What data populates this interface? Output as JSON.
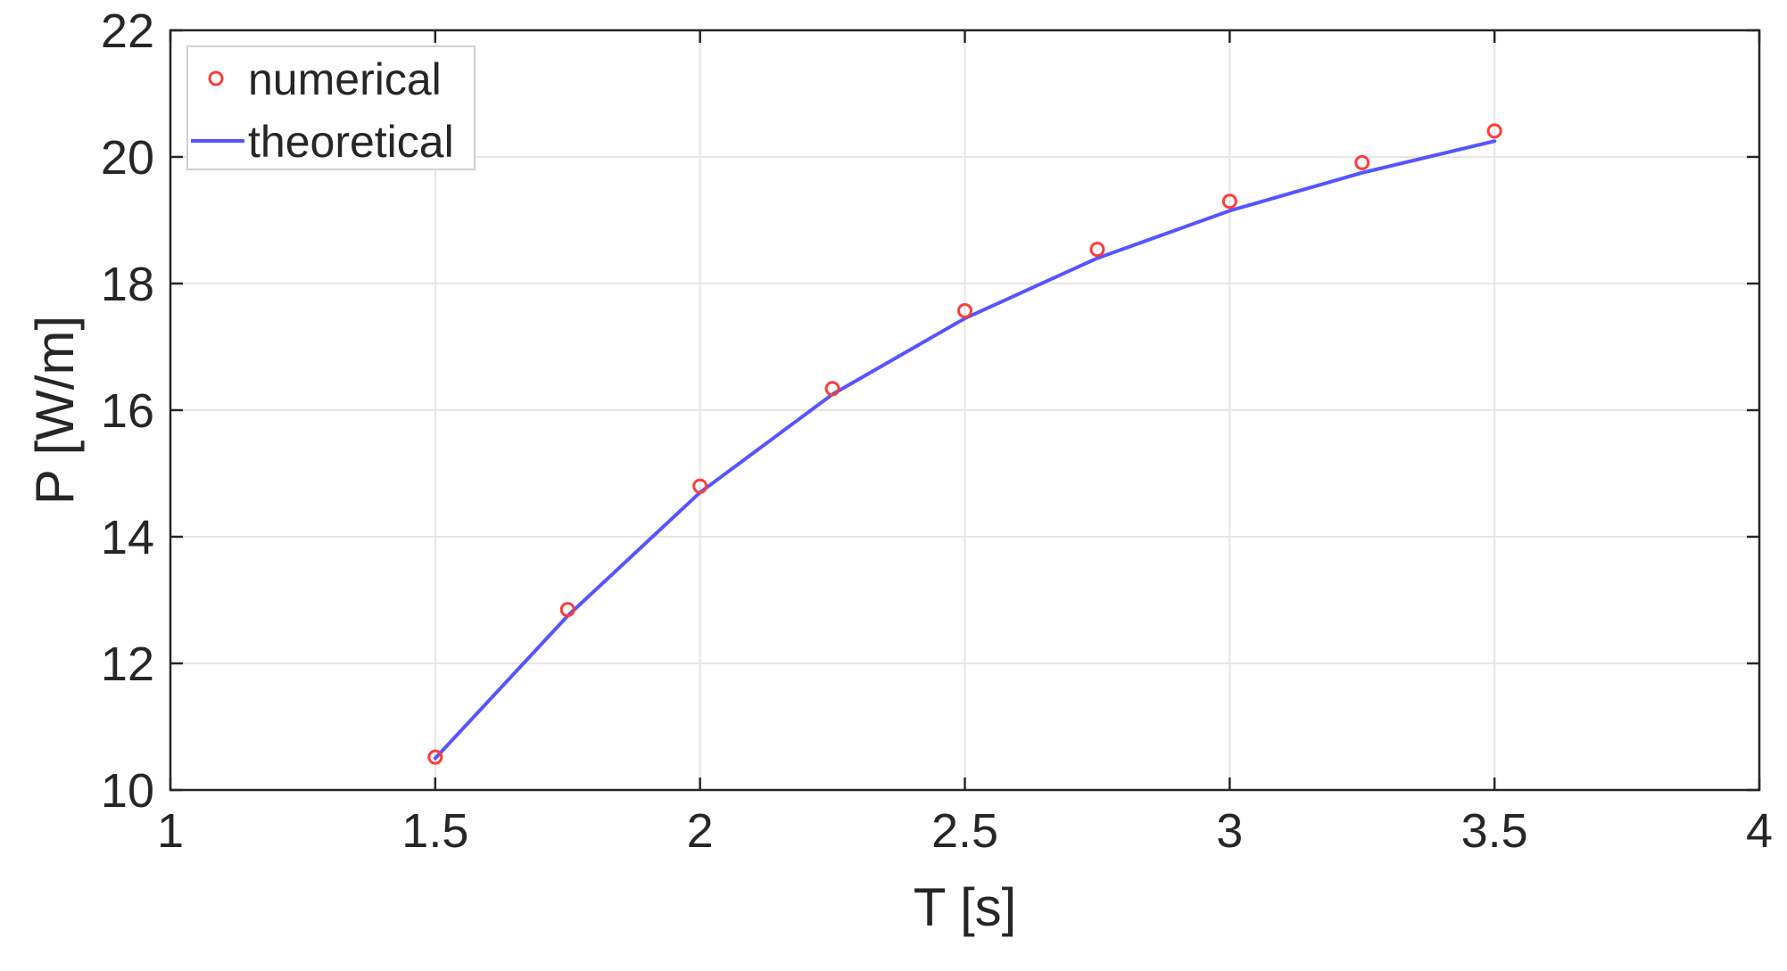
{
  "chart_data": {
    "type": "line",
    "xlabel": "T [s]",
    "ylabel": "P [W/m]",
    "xlim": [
      1,
      4
    ],
    "ylim": [
      10,
      22
    ],
    "xticks": [
      1,
      1.5,
      2,
      2.5,
      3,
      3.5,
      4
    ],
    "yticks": [
      10,
      12,
      14,
      16,
      18,
      20,
      22
    ],
    "xtick_labels": [
      "1",
      "1.5",
      "2",
      "2.5",
      "3",
      "3.5",
      "4"
    ],
    "ytick_labels": [
      "10",
      "12",
      "14",
      "16",
      "18",
      "20",
      "22"
    ],
    "grid": true,
    "legend_position": "top-left",
    "series": [
      {
        "name": "numerical",
        "style": "markers",
        "marker": "circle",
        "color": "#ff3b3b",
        "x": [
          1.5,
          1.75,
          2,
          2.25,
          2.5,
          2.75,
          3,
          3.25,
          3.5
        ],
        "y": [
          10.52,
          12.85,
          14.8,
          16.34,
          17.57,
          18.54,
          19.3,
          19.91,
          20.41
        ]
      },
      {
        "name": "theoretical",
        "style": "line",
        "color": "#5555ff",
        "x": [
          1.5,
          1.75,
          2,
          2.25,
          2.5,
          2.75,
          3,
          3.25,
          3.5
        ],
        "y": [
          10.5,
          12.75,
          14.7,
          16.25,
          17.45,
          18.4,
          19.15,
          19.75,
          20.25
        ]
      }
    ]
  }
}
